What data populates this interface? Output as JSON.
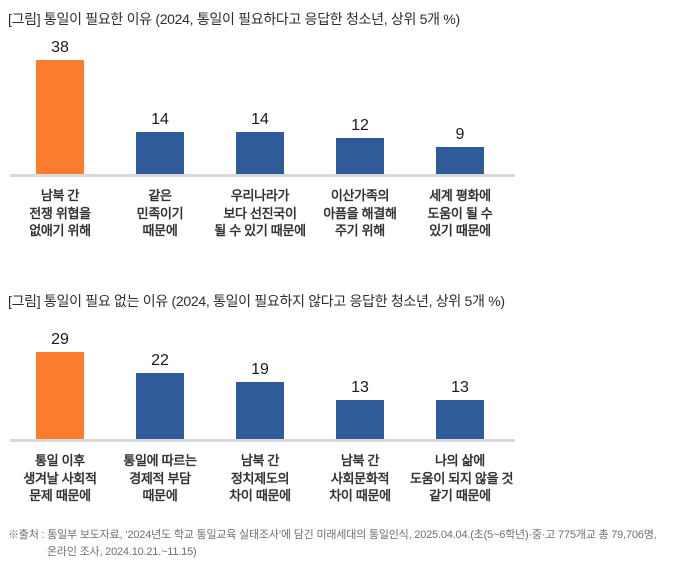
{
  "colors": {
    "highlight_bar": "#fb7b2f",
    "bar": "#2f5b9b",
    "axis_line": "#d9d9d9",
    "title_text": "#2e2e2e",
    "value_text": "#1a1a1a",
    "category_text": "#333333",
    "footnote_text": "#6f6f6f",
    "background": "#ffffff"
  },
  "chart_data": [
    {
      "type": "bar",
      "title": "[그림] 통일이 필요한 이유 (2024, 통일이 필요하다고 응답한 청소년, 상위 5개 %)",
      "categories": [
        "남북 간\n전쟁 위협을\n없애기 위해",
        "같은\n민족이기\n때문에",
        "우리나라가\n보다 선진국이\n될 수 있기 때문에",
        "이산가족의\n아픔을 해결해\n주기 위해",
        "세계 평화에\n도움이 될 수\n있기 때문에"
      ],
      "values": [
        38,
        14,
        14,
        12,
        9
      ],
      "unit": "%",
      "bar_colors": [
        "#fb7b2f",
        "#2f5b9b",
        "#2f5b9b",
        "#2f5b9b",
        "#2f5b9b"
      ],
      "value_labels_shown": true,
      "grid": false,
      "legend": null,
      "ylim": [
        0,
        45
      ]
    },
    {
      "type": "bar",
      "title": "[그림] 통일이 필요 없는 이유 (2024, 통일이 필요하지 않다고 응답한 청소년, 상위 5개 %)",
      "categories": [
        "통일 이후\n생겨날 사회적\n문제 때문에",
        "통일에 따르는\n경제적 부담\n때문에",
        "남북 간\n정치제도의\n차이 때문에",
        "남북 간\n사회문화적\n차이 때문에",
        "나의 삶에\n도움이 되지 않을 것\n같기 때문에"
      ],
      "values": [
        29,
        22,
        19,
        13,
        13
      ],
      "unit": "%",
      "bar_colors": [
        "#fb7b2f",
        "#2f5b9b",
        "#2f5b9b",
        "#2f5b9b",
        "#2f5b9b"
      ],
      "value_labels_shown": true,
      "grid": false,
      "legend": null,
      "ylim": [
        0,
        40
      ]
    }
  ],
  "footnote": {
    "lines": [
      "※출처 : 통일부 보도자료, ‘2024년도 학교 통일교육 실태조사’에 담긴 미래세대의 통일인식, 2025.04.04.(초(5~6학년)·중·고 775개교 총 79,706명,",
      "온라인 조사, 2024.10.21.~11.15)"
    ]
  }
}
